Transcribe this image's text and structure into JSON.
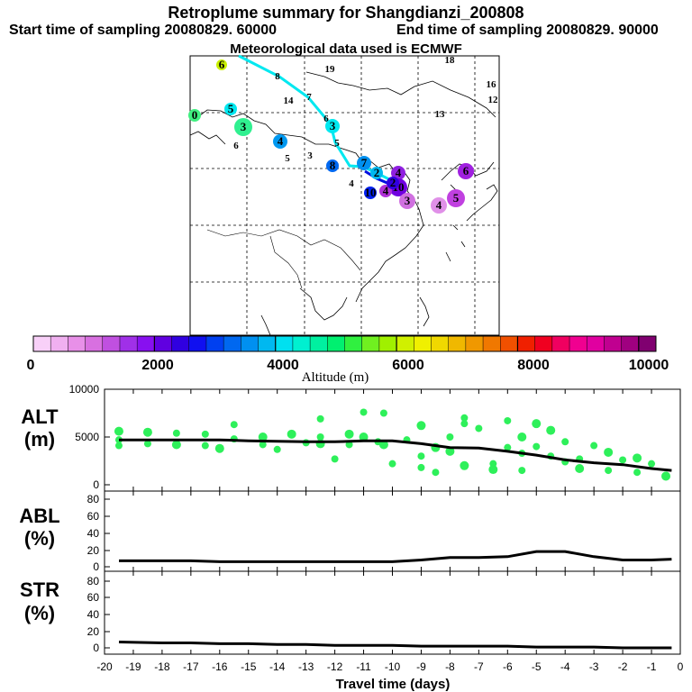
{
  "header": {
    "title": "Retroplume summary for Shangdianzi_200808",
    "start_time": "Start time of sampling 20080829. 60000",
    "end_time": "End time of sampling 20080829. 90000",
    "met": "Meteorological data used is ECMWF"
  },
  "colorbar": {
    "label": "Altitude (m)",
    "ticks": [
      "0",
      "2000",
      "4000",
      "6000",
      "8000",
      "10000"
    ],
    "colors": [
      "#f8d0f8",
      "#f0b0f0",
      "#e890e8",
      "#d870e0",
      "#c050e0",
      "#a030e8",
      "#8810f0",
      "#6000e0",
      "#3000e0",
      "#1010f0",
      "#0040f0",
      "#0068f0",
      "#0090f0",
      "#00b8f0",
      "#00e0f0",
      "#00f0d0",
      "#00f0a0",
      "#00f070",
      "#30f040",
      "#70f020",
      "#a0f000",
      "#d0f000",
      "#f0f000",
      "#f0d800",
      "#f0b800",
      "#f09800",
      "#f07800",
      "#f05000",
      "#f02000",
      "#f00020",
      "#f00060",
      "#f00090",
      "#e000a0",
      "#c00090",
      "#a00080",
      "#800070"
    ]
  },
  "map_labels": [
    "6",
    "8",
    "19",
    "18",
    "16",
    "12",
    "0",
    "5",
    "3",
    "14",
    "7",
    "6",
    "3",
    "13",
    "6",
    "4",
    "5",
    "5",
    "3",
    "8",
    "4",
    "7",
    "2",
    "10",
    "6",
    "4",
    "10",
    "4",
    "3",
    "2",
    "4",
    "5"
  ],
  "chart_data": [
    {
      "type": "scatter",
      "name": "ALT",
      "ylabel": "ALT (m)",
      "ylim": [
        0,
        10000
      ],
      "yticks": [
        "10000",
        "5000",
        "0"
      ],
      "line": {
        "x": [
          -19.5,
          -18,
          -17,
          -16,
          -15,
          -14,
          -13,
          -12,
          -11,
          -10,
          -9,
          -8,
          -7,
          -6,
          -5,
          -4,
          -3,
          -2,
          -1,
          -0.3
        ],
        "y": [
          4700,
          4700,
          4700,
          4700,
          4600,
          4550,
          4500,
          4500,
          4600,
          4600,
          4300,
          3900,
          3850,
          3500,
          3100,
          2600,
          2300,
          2100,
          1700,
          1500
        ]
      },
      "points": {
        "x": [
          -19.5,
          -19.5,
          -19.5,
          -18.5,
          -18.5,
          -17.5,
          -17.5,
          -16.5,
          -16.5,
          -16,
          -15.5,
          -15.5,
          -14.5,
          -14.5,
          -14,
          -13.5,
          -13,
          -12.5,
          -12.5,
          -12.5,
          -12,
          -11.5,
          -11.5,
          -11,
          -11,
          -10.5,
          -10.3,
          -10.3,
          -10,
          -9.5,
          -9,
          -9,
          -9,
          -8.5,
          -8.5,
          -8,
          -8,
          -7.5,
          -7.5,
          -7.5,
          -7,
          -6.5,
          -6.5,
          -6,
          -6,
          -5.5,
          -5.5,
          -5.5,
          -5,
          -5,
          -4.5,
          -4.5,
          -4,
          -4,
          -3.5,
          -3.5,
          -3,
          -2.5,
          -2.5,
          -2,
          -1.5,
          -1.5,
          -1,
          -0.5,
          -0.5
        ],
        "y": [
          5600,
          4700,
          4100,
          5500,
          4300,
          5400,
          4200,
          5300,
          4100,
          3800,
          6300,
          4800,
          5000,
          4200,
          3700,
          5300,
          4400,
          5000,
          4300,
          6900,
          2700,
          5300,
          4200,
          7600,
          5000,
          4500,
          7500,
          4200,
          2200,
          4700,
          6200,
          3000,
          1800,
          3900,
          1300,
          5000,
          3500,
          7000,
          6400,
          2000,
          5900,
          2200,
          1600,
          6700,
          3900,
          5000,
          1500,
          3300,
          6400,
          4000,
          3000,
          5700,
          4500,
          2400,
          1700,
          2700,
          4100,
          3400,
          1500,
          2600,
          2800,
          1300,
          2200,
          900,
          1000
        ],
        "color": "#2ef05a"
      }
    },
    {
      "type": "line",
      "name": "ABL",
      "ylabel": "ABL (%)",
      "ylim": [
        0,
        90
      ],
      "yticks": [
        "80",
        "60",
        "40",
        "20",
        "0"
      ],
      "x": [
        -19.5,
        -18,
        -17,
        -16,
        -15,
        -14,
        -13,
        -12,
        -11,
        -10,
        -9,
        -8,
        -7,
        -6,
        -5,
        -4,
        -3,
        -2,
        -1,
        -0.3
      ],
      "y": [
        7,
        7,
        7,
        6,
        6,
        6,
        6,
        6,
        6,
        6,
        8,
        11,
        11,
        12,
        18,
        18,
        12,
        8,
        8,
        9
      ]
    },
    {
      "type": "line",
      "name": "STR",
      "ylabel": "STR (%)",
      "ylim": [
        0,
        90
      ],
      "yticks": [
        "80",
        "60",
        "40",
        "20",
        "0"
      ],
      "x": [
        -19.5,
        -18,
        -17,
        -16,
        -15,
        -14,
        -13,
        -12,
        -11,
        -10,
        -9,
        -8,
        -7,
        -6,
        -5,
        -4,
        -3,
        -2,
        -1,
        -0.3
      ],
      "y": [
        7,
        6,
        6,
        5,
        5,
        4,
        4,
        3,
        3,
        3,
        2,
        2,
        2,
        2,
        1,
        1,
        1,
        0,
        0,
        0
      ]
    }
  ],
  "xaxis": {
    "label": "Travel time (days)",
    "min": -20,
    "max": 0,
    "ticks": [
      "-20",
      "-19",
      "-18",
      "-17",
      "-16",
      "-15",
      "-14",
      "-13",
      "-12",
      "-11",
      "-10",
      "-9",
      "-8",
      "-7",
      "-6",
      "-5",
      "-4",
      "-3",
      "-2",
      "-1",
      "0"
    ]
  }
}
